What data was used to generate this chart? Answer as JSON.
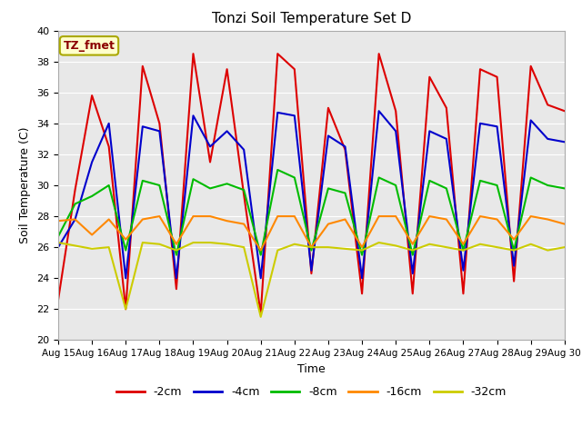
{
  "title": "Tonzi Soil Temperature Set D",
  "xlabel": "Time",
  "ylabel": "Soil Temperature (C)",
  "ylim": [
    20,
    40
  ],
  "xlim": [
    0,
    15
  ],
  "plot_bg_color": "#e8e8e8",
  "fig_bg_color": "#ffffff",
  "annotation_text": "TZ_fmet",
  "annotation_bg": "#ffffcc",
  "annotation_border": "#aaa800",
  "series": {
    "-2cm": {
      "color": "#dd0000",
      "lw": 1.5
    },
    "-4cm": {
      "color": "#0000cc",
      "lw": 1.5
    },
    "-8cm": {
      "color": "#00bb00",
      "lw": 1.5
    },
    "-16cm": {
      "color": "#ff8800",
      "lw": 1.5
    },
    "-32cm": {
      "color": "#cccc00",
      "lw": 1.5
    }
  },
  "x": [
    0,
    0.5,
    1,
    1.5,
    2,
    2.5,
    3,
    3.5,
    4,
    4.5,
    5,
    5.5,
    6,
    6.5,
    7,
    7.5,
    8,
    8.5,
    9,
    9.5,
    10,
    10.5,
    11,
    11.5,
    12,
    12.5,
    13,
    13.5,
    14,
    14.5,
    15
  ],
  "y_2cm": [
    22.6,
    29.7,
    35.8,
    32.5,
    22.0,
    37.7,
    34.0,
    23.3,
    38.5,
    31.5,
    37.5,
    29.4,
    21.7,
    38.5,
    37.5,
    24.3,
    35.0,
    32.3,
    23.0,
    38.5,
    34.8,
    23.0,
    37.0,
    35.0,
    23.0,
    37.5,
    37.0,
    23.8,
    37.7,
    35.2,
    34.8
  ],
  "y_4cm": [
    26.0,
    27.8,
    31.5,
    34.0,
    24.0,
    33.8,
    33.5,
    24.0,
    34.5,
    32.5,
    33.5,
    32.3,
    24.0,
    34.7,
    34.5,
    24.5,
    33.2,
    32.5,
    24.0,
    34.8,
    33.5,
    24.3,
    33.5,
    33.0,
    24.5,
    34.0,
    33.8,
    24.8,
    34.2,
    33.0,
    32.8
  ],
  "y_8cm": [
    26.7,
    28.8,
    29.3,
    30.0,
    25.8,
    30.3,
    30.0,
    25.5,
    30.4,
    29.8,
    30.1,
    29.7,
    25.5,
    31.0,
    30.5,
    25.8,
    29.8,
    29.5,
    25.5,
    30.5,
    30.0,
    25.5,
    30.3,
    29.8,
    25.8,
    30.3,
    30.0,
    25.8,
    30.5,
    30.0,
    29.8
  ],
  "y_16cm": [
    27.7,
    27.8,
    26.8,
    27.8,
    26.5,
    27.8,
    28.0,
    26.2,
    28.0,
    28.0,
    27.7,
    27.5,
    25.8,
    28.0,
    28.0,
    26.0,
    27.5,
    27.8,
    26.0,
    28.0,
    28.0,
    26.2,
    28.0,
    27.8,
    26.2,
    28.0,
    27.8,
    26.5,
    28.0,
    27.8,
    27.5
  ],
  "y_32cm": [
    26.3,
    26.1,
    25.9,
    26.0,
    22.0,
    26.3,
    26.2,
    25.8,
    26.3,
    26.3,
    26.2,
    26.0,
    21.5,
    25.8,
    26.2,
    26.0,
    26.0,
    25.9,
    25.8,
    26.3,
    26.1,
    25.8,
    26.2,
    26.0,
    25.8,
    26.2,
    26.0,
    25.8,
    26.2,
    25.8,
    26.0
  ],
  "yticks": [
    20,
    22,
    24,
    26,
    28,
    30,
    32,
    34,
    36,
    38,
    40
  ],
  "xtick_labels": [
    "Aug 15",
    "Aug 16",
    "Aug 17",
    "Aug 18",
    "Aug 19",
    "Aug 20",
    "Aug 21",
    "Aug 22",
    "Aug 23",
    "Aug 24",
    "Aug 25",
    "Aug 26",
    "Aug 27",
    "Aug 28",
    "Aug 29",
    "Aug 30"
  ],
  "xtick_positions": [
    0,
    1,
    2,
    3,
    4,
    5,
    6,
    7,
    8,
    9,
    10,
    11,
    12,
    13,
    14,
    15
  ]
}
